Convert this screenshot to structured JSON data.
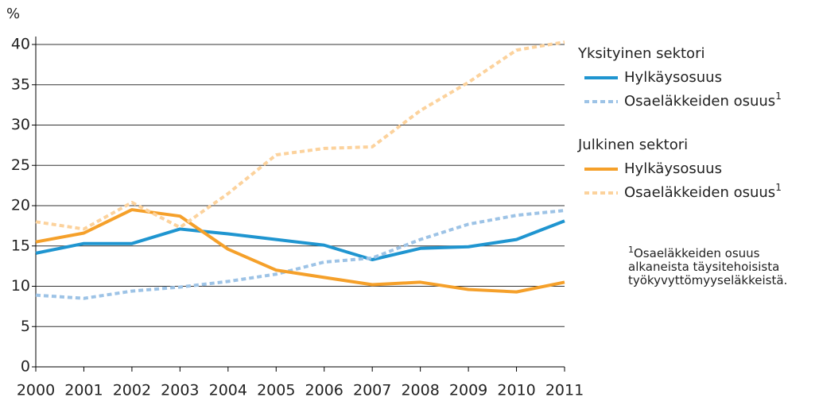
{
  "chart_data": {
    "type": "line",
    "y_label": "%",
    "x": [
      2000,
      2001,
      2002,
      2003,
      2004,
      2005,
      2006,
      2007,
      2008,
      2009,
      2010,
      2011
    ],
    "xlim": [
      2000,
      2011
    ],
    "xticks": [
      2000,
      2001,
      2002,
      2003,
      2004,
      2005,
      2006,
      2007,
      2008,
      2009,
      2010,
      2011
    ],
    "ylim": [
      0,
      40
    ],
    "yticks": [
      0,
      5,
      10,
      15,
      20,
      25,
      30,
      35,
      40
    ],
    "grid": true,
    "legend_titles": [
      "Yksityinen sektori",
      "Julkinen sektori"
    ],
    "series": [
      {
        "name": "Hylkäysosuus",
        "color": "#1f95d0",
        "style": "solid",
        "values": [
          14.1,
          15.3,
          15.3,
          17.1,
          16.5,
          15.8,
          15.1,
          13.3,
          14.7,
          14.9,
          15.8,
          18.1
        ]
      },
      {
        "name": "Osaeläkkeiden osuus",
        "superscript": "1",
        "color": "#9dc3e6",
        "style": "dashed",
        "values": [
          8.9,
          8.5,
          9.4,
          9.9,
          10.6,
          11.5,
          13.0,
          13.5,
          15.8,
          17.7,
          18.8,
          19.4
        ]
      },
      {
        "name": "Hylkäysosuus",
        "color": "#f5a02a",
        "style": "solid",
        "values": [
          15.5,
          16.6,
          19.5,
          18.7,
          14.6,
          12.0,
          11.1,
          10.2,
          10.5,
          9.6,
          9.3,
          10.5
        ]
      },
      {
        "name": "Osaeläkkeiden osuus",
        "superscript": "1",
        "color": "#fcd29c",
        "style": "dashed",
        "values": [
          18.0,
          17.1,
          20.4,
          17.3,
          21.5,
          26.3,
          27.1,
          27.3,
          31.8,
          35.3,
          39.3,
          40.3
        ]
      }
    ],
    "footnote_mark": "1",
    "footnote": "Osaeläkkeiden osuus alkaneista täysitehoisista työkyvyttömyyseläkkeistä."
  }
}
